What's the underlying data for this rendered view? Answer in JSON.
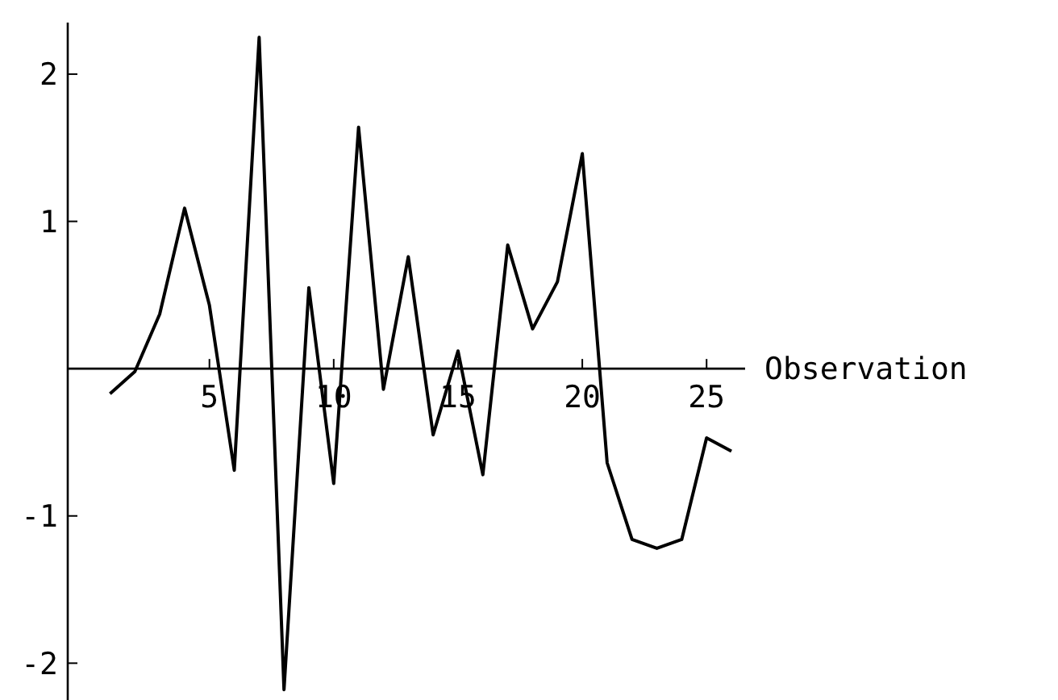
{
  "chart_data": {
    "type": "line",
    "xlabel": "Observation",
    "x": [
      1,
      2,
      3,
      4,
      5,
      6,
      7,
      8,
      9,
      10,
      11,
      12,
      13,
      14,
      15,
      16,
      17,
      18,
      19,
      20,
      21,
      22,
      23,
      24,
      25,
      26
    ],
    "series": [
      {
        "color": "#000000",
        "values": [
          -0.17,
          -0.02,
          0.37,
          1.09,
          0.43,
          -0.69,
          2.25,
          -2.18,
          0.55,
          -0.78,
          1.64,
          -0.14,
          0.76,
          -0.45,
          0.12,
          -0.72,
          0.84,
          0.27,
          0.59,
          1.46,
          -0.64,
          -1.16,
          -1.22,
          -1.16,
          -0.47,
          -0.56
        ]
      }
    ],
    "xlim": [
      -0.7,
      26.55
    ],
    "ylim": [
      -2.25,
      2.35
    ],
    "xticks": [
      5,
      10,
      15,
      20,
      25
    ],
    "yticks": [
      -2,
      -1,
      1,
      2
    ],
    "marker": "none",
    "line_style": "solid"
  }
}
